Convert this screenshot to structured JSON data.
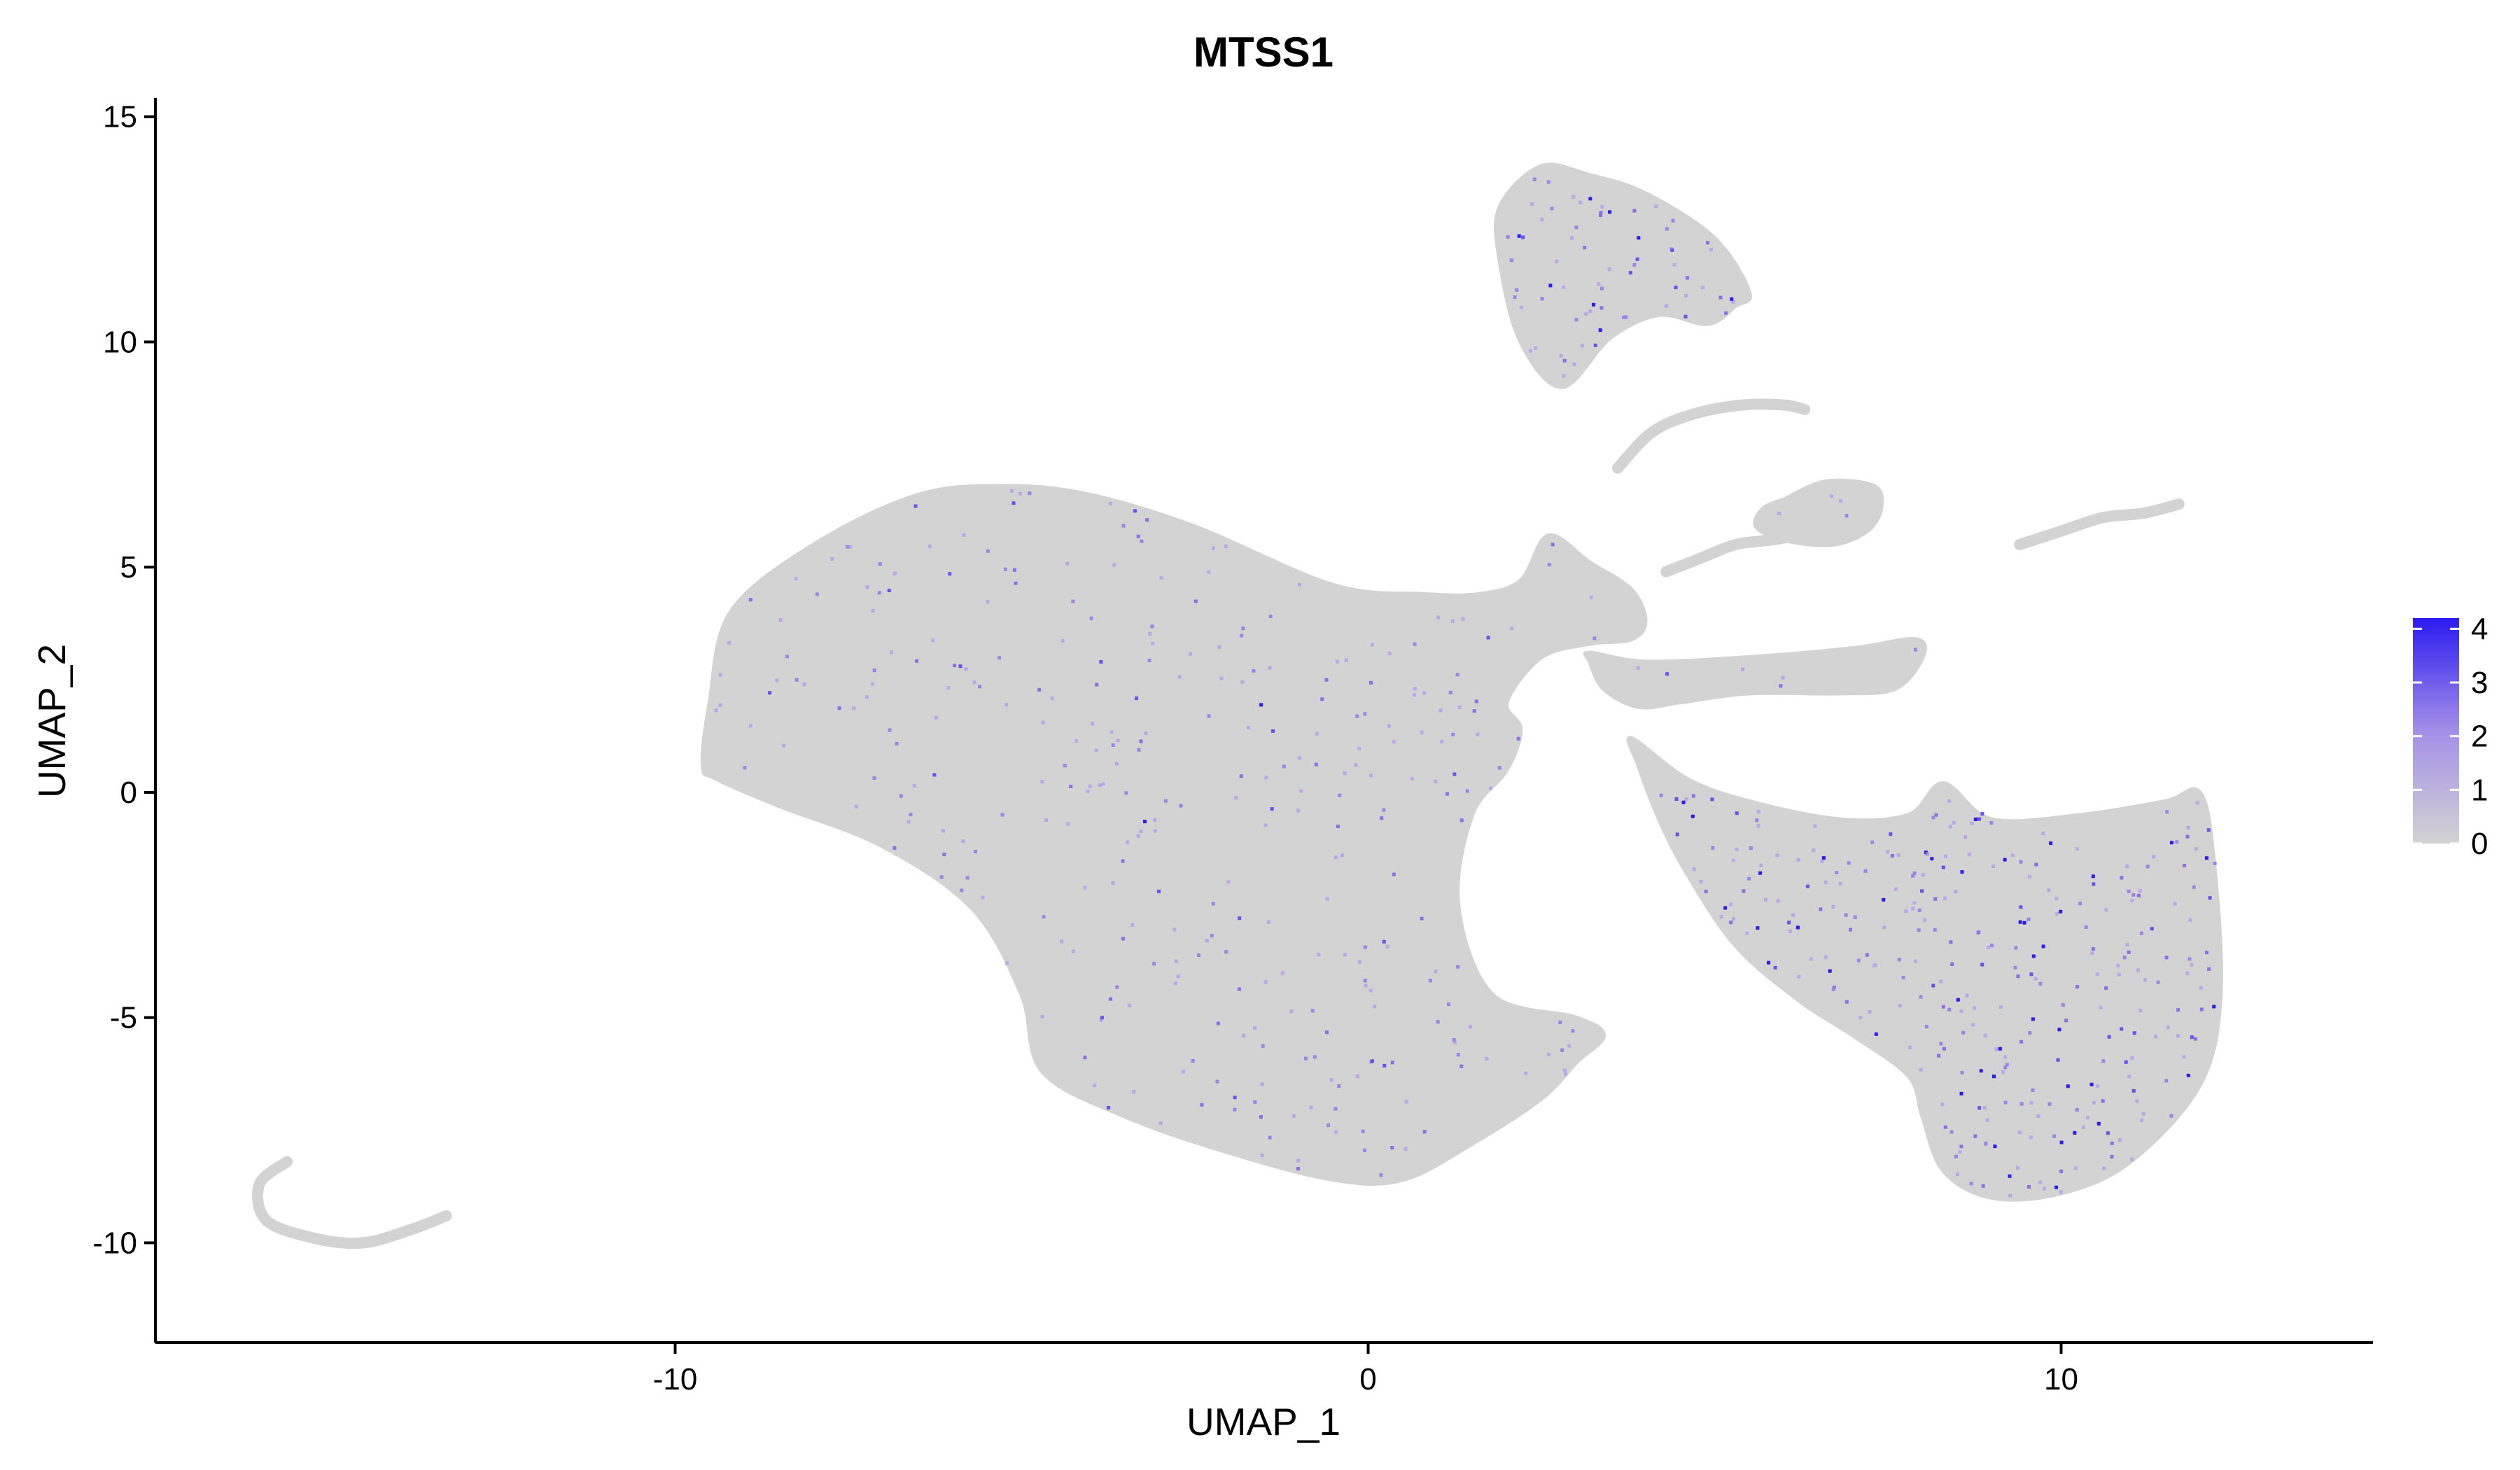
{
  "chart_data": {
    "type": "scatter",
    "title": "MTSS1",
    "xlabel": "UMAP_1",
    "ylabel": "UMAP_2",
    "xlim": [
      -17.5,
      14.5
    ],
    "ylim": [
      -12.2,
      15.4
    ],
    "xticks": [
      {
        "value": -10,
        "label": "-10"
      },
      {
        "value": 0,
        "label": "0"
      },
      {
        "value": 10,
        "label": "10"
      }
    ],
    "yticks": [
      {
        "value": -10,
        "label": "-10"
      },
      {
        "value": -5,
        "label": "-5"
      },
      {
        "value": 0,
        "label": "0"
      },
      {
        "value": 5,
        "label": "5"
      },
      {
        "value": 10,
        "label": "10"
      },
      {
        "value": 15,
        "label": "15"
      }
    ],
    "grid": false,
    "legend": {
      "position": "right",
      "type": "colorbar",
      "min": 0,
      "max": 4.2,
      "ticks": [
        {
          "value": 0,
          "label": "0"
        },
        {
          "value": 1,
          "label": "1"
        },
        {
          "value": 2,
          "label": "2"
        },
        {
          "value": 3,
          "label": "3"
        },
        {
          "value": 4,
          "label": "4"
        }
      ],
      "low_color": "#D3D3D3",
      "high_color": "#2B1BF0"
    },
    "colors": {
      "background_cells": "#D3D3D3",
      "high_expression": "#2B1BF0",
      "mid_expression": "#8A6FE6"
    },
    "clusters": [
      {
        "shape": "blob",
        "x": [
          -9.6,
          -9.5,
          -9.2,
          -8.0,
          -6.5,
          -5.2,
          -4.0,
          -2.5,
          -0.5,
          0.8,
          1.6,
          2.2,
          2.6,
          3.2,
          3.8,
          4.0,
          3.8,
          3.2,
          2.5,
          2.0,
          2.2,
          2.0,
          1.5,
          1.3,
          1.8,
          3.0,
          3.4,
          3.0,
          2.5,
          1.5,
          0.5,
          -0.5,
          -2.0,
          -3.5,
          -4.7,
          -5.0,
          -5.7,
          -7.0,
          -8.5,
          -9.4
        ],
        "y": [
          0.6,
          2.0,
          4.0,
          5.5,
          6.6,
          6.8,
          6.6,
          5.9,
          4.6,
          4.4,
          4.4,
          4.7,
          5.7,
          5.1,
          4.5,
          3.8,
          3.4,
          3.3,
          3.0,
          2.0,
          1.4,
          0.5,
          -0.5,
          -2.5,
          -4.5,
          -5.0,
          -5.4,
          -6.0,
          -6.8,
          -7.8,
          -8.6,
          -8.6,
          -8.0,
          -7.2,
          -6.2,
          -4.5,
          -2.6,
          -1.2,
          -0.3,
          0.3
        ],
        "mean_expr": 0.35
      },
      {
        "shape": "blob",
        "x": [
          3.8,
          4.6,
          5.5,
          6.8,
          7.8,
          8.3,
          9.0,
          10.3,
          11.5,
          12.0,
          12.2,
          12.3,
          12.0,
          11.0,
          10.0,
          9.0,
          8.3,
          8.0,
          7.8,
          7.0,
          6.2,
          5.3,
          4.6,
          4.2,
          3.9
        ],
        "y": [
          1.2,
          0.3,
          -0.2,
          -0.6,
          -0.5,
          0.2,
          -0.6,
          -0.5,
          -0.2,
          0.0,
          -1.5,
          -4.5,
          -6.5,
          -8.2,
          -8.9,
          -9.0,
          -8.4,
          -7.2,
          -6.3,
          -5.4,
          -4.6,
          -3.4,
          -1.8,
          -0.6,
          0.6
        ],
        "mean_expr": 0.9
      },
      {
        "shape": "blob",
        "x": [
          1.9,
          2.5,
          3.2,
          4.0,
          5.0,
          5.5,
          5.3,
          4.9,
          4.2,
          3.5,
          2.8,
          2.2,
          1.9
        ],
        "y": [
          13.0,
          13.9,
          13.7,
          13.3,
          12.3,
          11.1,
          10.8,
          10.4,
          10.6,
          10.1,
          9.0,
          10.0,
          11.8
        ],
        "mean_expr": 0.8
      },
      {
        "shape": "blob",
        "x": [
          3.2,
          4.0,
          5.5,
          7.0,
          7.9,
          8.0,
          7.6,
          6.8,
          5.5,
          4.5,
          3.9,
          3.4,
          3.2
        ],
        "y": [
          3.1,
          2.9,
          3.0,
          3.2,
          3.4,
          3.0,
          2.3,
          2.2,
          2.2,
          2.0,
          1.9,
          2.3,
          2.9
        ],
        "mean_expr": 0.2
      },
      {
        "shape": "blob",
        "x": [
          6.0,
          6.6,
          7.3,
          7.4,
          7.2,
          6.7,
          6.0,
          5.6,
          5.7,
          6.0
        ],
        "y": [
          6.5,
          6.9,
          6.8,
          6.3,
          5.8,
          5.5,
          5.6,
          5.9,
          6.3,
          6.5
        ],
        "mean_expr": 0.3
      },
      {
        "shape": "curve",
        "x": [
          3.6,
          4.1,
          4.7,
          5.4,
          6.0,
          6.3
        ],
        "y": [
          7.2,
          8.0,
          8.4,
          8.6,
          8.6,
          8.5
        ],
        "mean_expr": 0.05
      },
      {
        "shape": "curve",
        "x": [
          4.3,
          4.8,
          5.3,
          5.8,
          6.2
        ],
        "y": [
          4.9,
          5.2,
          5.5,
          5.6,
          5.7
        ],
        "mean_expr": 0.05
      },
      {
        "shape": "curve",
        "x": [
          9.4,
          10.0,
          10.6,
          11.2,
          11.7
        ],
        "y": [
          5.5,
          5.8,
          6.1,
          6.2,
          6.4
        ],
        "mean_expr": 0.1
      },
      {
        "shape": "curve",
        "x": [
          -15.6,
          -16.0,
          -15.9,
          -15.2,
          -14.5,
          -13.8,
          -13.3
        ],
        "y": [
          -8.2,
          -8.7,
          -9.5,
          -9.9,
          -10.0,
          -9.7,
          -9.4
        ],
        "mean_expr": 0.0
      }
    ]
  }
}
